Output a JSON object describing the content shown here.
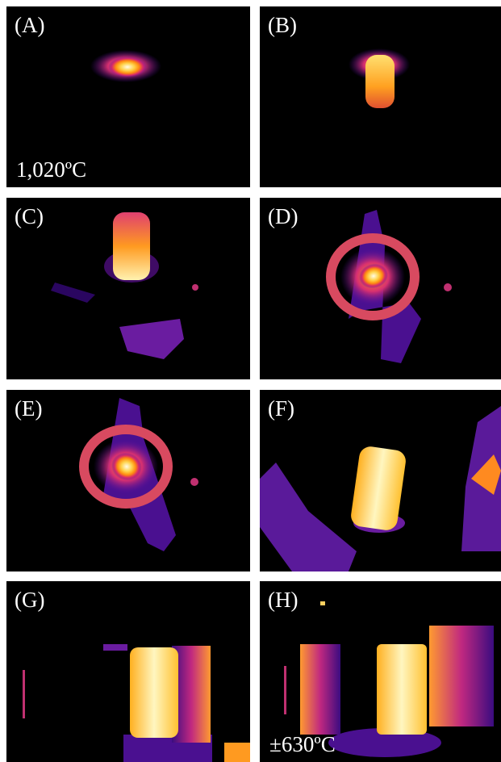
{
  "panels": [
    {
      "label": "(A)",
      "annotation": "1,020ºC"
    },
    {
      "label": "(B)"
    },
    {
      "label": "(C)"
    },
    {
      "label": "(D)"
    },
    {
      "label": "(E)"
    },
    {
      "label": "(F)"
    },
    {
      "label": "(G)"
    },
    {
      "label": "(H)",
      "annotation": "±630ºC"
    }
  ]
}
